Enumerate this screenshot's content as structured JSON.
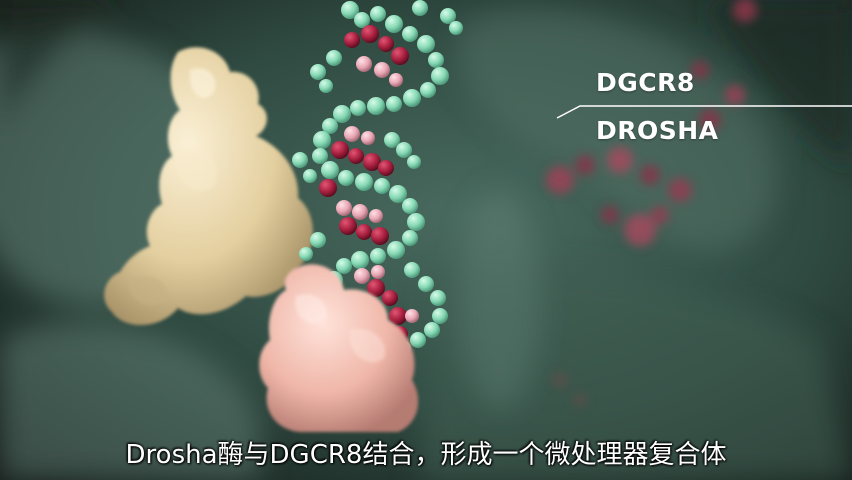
{
  "scene": {
    "labels": {
      "top": "DGCR8",
      "bottom": "DROSHA"
    },
    "subtitle": "Drosha酶与DGCR8结合，形成一个微处理器复合体",
    "colors": {
      "background_dark": "#1d2a25",
      "background_teal": "#3a5a4f",
      "dgcr8_protein": "#e8d6ae",
      "drosha_protein": "#f0c0b2",
      "rna_green": "#86d8b4",
      "rna_red": "#a8203f",
      "rna_pink": "#e8a7b4",
      "label_white": "#ffffff"
    }
  }
}
